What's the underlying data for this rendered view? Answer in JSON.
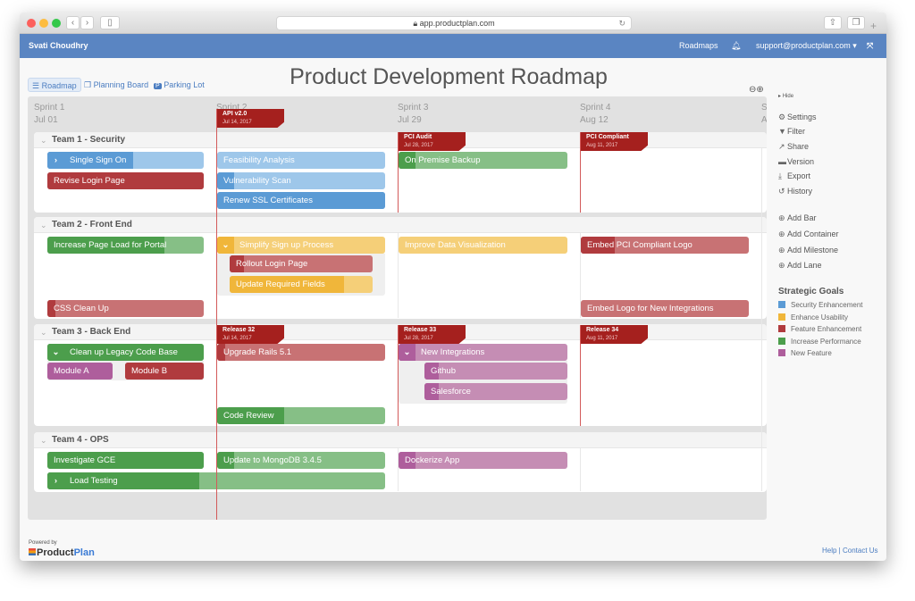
{
  "browser": {
    "url": "app.productplan.com"
  },
  "nav": {
    "user": "Svati Choudhry",
    "roadmaps": "Roadmaps",
    "account": "support@productplan.com ▾"
  },
  "tabs": [
    {
      "label": "Roadmap",
      "active": true
    },
    {
      "label": "Planning Board"
    },
    {
      "label": "Parking Lot"
    }
  ],
  "title": "Product Development Roadmap",
  "sprints": [
    {
      "name": "Sprint 1",
      "date": "Jul 01"
    },
    {
      "name": "Sprint 2",
      "date": ""
    },
    {
      "name": "Sprint 3",
      "date": "Jul 29"
    },
    {
      "name": "Sprint 4",
      "date": "Aug 12"
    },
    {
      "name": "S",
      "date": "A"
    }
  ],
  "goals": {
    "security": {
      "label": "Security Enhancement",
      "dark": "#5b9bd5",
      "light": "#9ec7ea"
    },
    "usability": {
      "label": "Enhance Usability",
      "dark": "#f0b63a",
      "light": "#f5cf78"
    },
    "feature": {
      "label": "Feature Enhancement",
      "dark": "#b03b3e",
      "light": "#c87274"
    },
    "performance": {
      "label": "Increase Performance",
      "dark": "#4c9e4c",
      "light": "#86bf86"
    },
    "newfeature": {
      "label": "New Feature",
      "dark": "#ae5e9c",
      "light": "#c58db4"
    }
  },
  "lanes": [
    {
      "name": "Team 1 - Security"
    },
    {
      "name": "Team 2 - Front End"
    },
    {
      "name": "Team 3 - Back End"
    },
    {
      "name": "Team 4 - OPS"
    }
  ],
  "milestones": [
    {
      "name": "API v2.0",
      "date": "Jul 14, 2017"
    },
    {
      "name": "PCI Audit",
      "date": "Jul 28, 2017"
    },
    {
      "name": "PCI Compliant",
      "date": "Aug 11, 2017"
    },
    {
      "name": "Release 32",
      "date": "Jul 14, 2017"
    },
    {
      "name": "Release 33",
      "date": "Jul 28, 2017"
    },
    {
      "name": "Release 34",
      "date": "Aug 11, 2017"
    }
  ],
  "bars": [
    {
      "label": "Single Sign On",
      "goal": "security",
      "progress": 0.55,
      "expander": "›"
    },
    {
      "label": "Revise Login Page",
      "goal": "feature",
      "progress": 1
    },
    {
      "label": "Feasibility Analysis",
      "goal": "security",
      "progress": 0
    },
    {
      "label": "Vulnerability Scan",
      "goal": "security",
      "progress": 0.1
    },
    {
      "label": "Renew SSL Certificates",
      "goal": "security",
      "progress": 1
    },
    {
      "label": "On Premise Backup",
      "goal": "performance",
      "progress": 0.1
    },
    {
      "label": "Increase Page Load for Portal",
      "goal": "performance",
      "progress": 0.75
    },
    {
      "label": "Simplify Sign up Process",
      "goal": "usability",
      "progress": 0.1,
      "expander": "⌄"
    },
    {
      "label": "Rollout Login Page",
      "goal": "feature",
      "progress": 0.1
    },
    {
      "label": "Update Required Fields",
      "goal": "usability",
      "progress": 0.8
    },
    {
      "label": "CSS Clean Up",
      "goal": "feature",
      "progress": 0.05
    },
    {
      "label": "Improve Data Visualization",
      "goal": "usability",
      "progress": 0
    },
    {
      "label": "Embed PCI Compliant Logo",
      "goal": "feature",
      "progress": 0.2
    },
    {
      "label": "Embed Logo for New Integrations",
      "goal": "feature",
      "progress": 0
    },
    {
      "label": "Clean up Legacy Code Base",
      "goal": "performance",
      "progress": 1,
      "expander": "⌄"
    },
    {
      "label": "Module A",
      "goal": "newfeature",
      "progress": 1
    },
    {
      "label": "Module B",
      "goal": "feature",
      "progress": 1
    },
    {
      "label": "Upgrade Rails 5.1",
      "goal": "feature",
      "progress": 0.05
    },
    {
      "label": "Code Review",
      "goal": "performance",
      "progress": 0.4
    },
    {
      "label": "New Integrations",
      "goal": "newfeature",
      "progress": 0.1,
      "expander": "⌄"
    },
    {
      "label": "Github",
      "goal": "newfeature",
      "progress": 0.1
    },
    {
      "label": "Salesforce",
      "goal": "newfeature",
      "progress": 0.1
    },
    {
      "label": "Investigate GCE",
      "goal": "performance",
      "progress": 1
    },
    {
      "label": "Update to MongoDB 3.4.5",
      "goal": "performance",
      "progress": 0.1
    },
    {
      "label": "Dockerize App",
      "goal": "newfeature",
      "progress": 0.1
    },
    {
      "label": "Load Testing",
      "goal": "performance",
      "progress": 0.45,
      "expander": "›"
    }
  ],
  "sidebar": {
    "hide": "Hide",
    "actions": [
      {
        "label": "Settings",
        "icon": "gear-icon"
      },
      {
        "label": "Filter",
        "icon": "filter-icon"
      },
      {
        "label": "Share",
        "icon": "share-icon"
      },
      {
        "label": "Version",
        "icon": "version-icon"
      },
      {
        "label": "Export",
        "icon": "download-icon"
      },
      {
        "label": "History",
        "icon": "history-icon"
      }
    ],
    "add": [
      {
        "label": "Add Bar"
      },
      {
        "label": "Add Container"
      },
      {
        "label": "Add Milestone"
      },
      {
        "label": "Add Lane"
      }
    ],
    "legend_title": "Strategic Goals"
  },
  "footer": {
    "powered": "Powered by",
    "brand_a": "Product",
    "brand_b": "Plan",
    "links": "Help | Contact Us"
  }
}
